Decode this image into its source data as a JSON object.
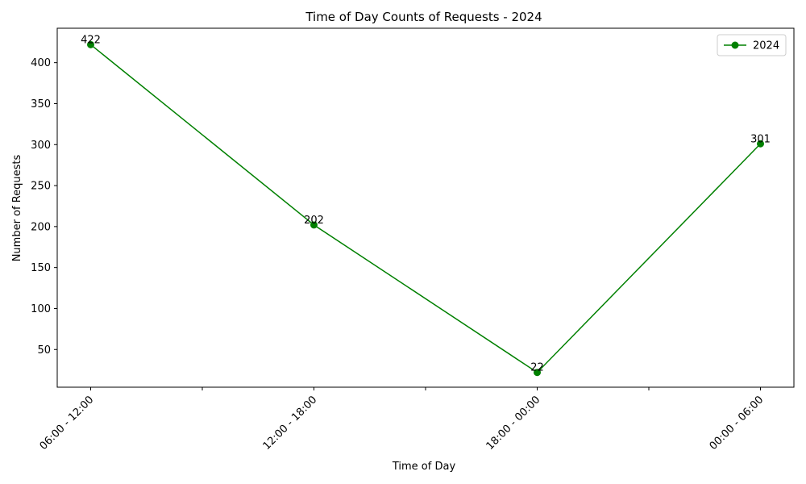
{
  "chart_data": {
    "type": "line",
    "title": "Time of Day Counts of Requests - 2024",
    "xlabel": "Time of Day",
    "ylabel": "Number of Requests",
    "categories": [
      "06:00 - 12:00",
      "12:00 - 18:00",
      "18:00 - 00:00",
      "00:00 - 06:00"
    ],
    "series": [
      {
        "name": "2024",
        "values": [
          422,
          202,
          22,
          301
        ],
        "color": "#008000"
      }
    ],
    "ylim": [
      4,
      442
    ],
    "yticks": [
      50,
      100,
      150,
      200,
      250,
      300,
      350,
      400
    ],
    "grid": false,
    "legend_position": "top-right"
  }
}
